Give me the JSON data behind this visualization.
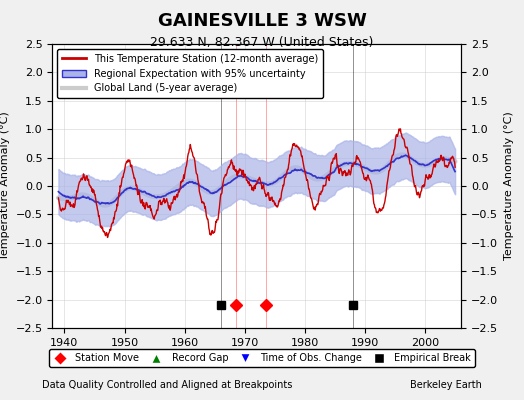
{
  "title": "GAINESVILLE 3 WSW",
  "subtitle": "29.633 N, 82.367 W (United States)",
  "ylabel": "Temperature Anomaly (°C)",
  "footer_left": "Data Quality Controlled and Aligned at Breakpoints",
  "footer_right": "Berkeley Earth",
  "xlim": [
    1938,
    2006
  ],
  "ylim": [
    -2.5,
    2.5
  ],
  "yticks": [
    -2.5,
    -2,
    -1.5,
    -1,
    -0.5,
    0,
    0.5,
    1,
    1.5,
    2,
    2.5
  ],
  "xticks": [
    1940,
    1950,
    1960,
    1970,
    1980,
    1990,
    2000
  ],
  "station_moves": [
    1968.5,
    1973.5
  ],
  "empirical_breaks": [
    1966,
    1988
  ],
  "bg_color": "#f0f0f0",
  "plot_bg_color": "#ffffff",
  "band_color": "#aab4e8",
  "band_edge_color": "#3333cc",
  "station_line_color": "#cc0000",
  "global_land_color": "#cccccc",
  "seed": 42
}
